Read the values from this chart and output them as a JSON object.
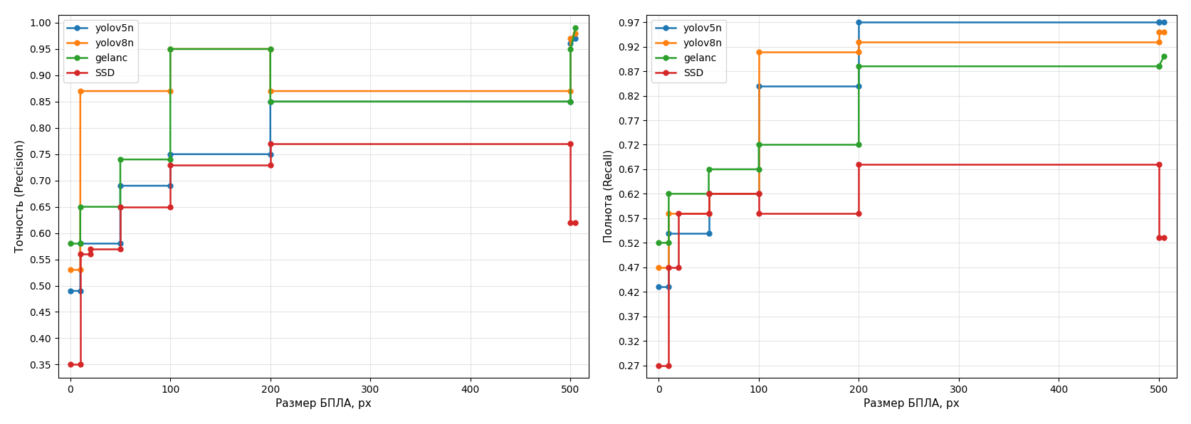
{
  "left": {
    "ylabel": "Точность (Precision)",
    "xlabel": "Размер БПЛА, рх",
    "ylim": [
      0.325,
      1.015
    ],
    "yticks": [
      0.35,
      0.4,
      0.45,
      0.5,
      0.55,
      0.6,
      0.65,
      0.7,
      0.75,
      0.8,
      0.85,
      0.9,
      0.95,
      1.0
    ],
    "xlim": [
      -12,
      518
    ],
    "xticks": [
      0,
      100,
      200,
      300,
      400,
      500
    ],
    "series": {
      "yolov5n": {
        "color": "#1f77b4",
        "x": [
          0,
          10,
          10,
          50,
          50,
          100,
          100,
          200,
          200,
          500,
          500,
          505
        ],
        "y": [
          0.49,
          0.49,
          0.58,
          0.58,
          0.69,
          0.69,
          0.75,
          0.75,
          0.85,
          0.85,
          0.96,
          0.97
        ]
      },
      "yolov8n": {
        "color": "#ff7f0e",
        "x": [
          0,
          10,
          10,
          100,
          100,
          200,
          200,
          500,
          500,
          505
        ],
        "y": [
          0.53,
          0.53,
          0.87,
          0.87,
          0.95,
          0.95,
          0.87,
          0.87,
          0.97,
          0.98
        ]
      },
      "gelanc": {
        "color": "#2ca02c",
        "x": [
          0,
          10,
          10,
          50,
          50,
          100,
          100,
          200,
          200,
          500,
          500,
          505
        ],
        "y": [
          0.58,
          0.58,
          0.65,
          0.65,
          0.74,
          0.74,
          0.95,
          0.95,
          0.85,
          0.85,
          0.95,
          0.99
        ]
      },
      "SSD": {
        "color": "#d62728",
        "x": [
          0,
          10,
          10,
          20,
          20,
          50,
          50,
          100,
          100,
          200,
          200,
          500,
          500,
          505
        ],
        "y": [
          0.35,
          0.35,
          0.56,
          0.56,
          0.57,
          0.57,
          0.65,
          0.65,
          0.73,
          0.73,
          0.77,
          0.77,
          0.62,
          0.62
        ]
      }
    }
  },
  "right": {
    "ylabel": "Полнота (Recall)",
    "xlabel": "Размер БПЛА, рх",
    "ylim": [
      0.245,
      0.985
    ],
    "yticks": [
      0.27,
      0.32,
      0.37,
      0.42,
      0.47,
      0.52,
      0.57,
      0.62,
      0.67,
      0.72,
      0.77,
      0.82,
      0.87,
      0.92,
      0.97
    ],
    "xlim": [
      -12,
      518
    ],
    "xticks": [
      0,
      100,
      200,
      300,
      400,
      500
    ],
    "series": {
      "yolov5n": {
        "color": "#1f77b4",
        "x": [
          0,
          10,
          10,
          50,
          50,
          100,
          100,
          200,
          200,
          500,
          500,
          505
        ],
        "y": [
          0.43,
          0.43,
          0.54,
          0.54,
          0.62,
          0.62,
          0.84,
          0.84,
          0.97,
          0.97,
          0.97,
          0.97
        ]
      },
      "yolov8n": {
        "color": "#ff7f0e",
        "x": [
          0,
          10,
          10,
          50,
          50,
          100,
          100,
          200,
          200,
          500,
          500,
          505
        ],
        "y": [
          0.47,
          0.47,
          0.58,
          0.58,
          0.62,
          0.62,
          0.91,
          0.91,
          0.93,
          0.93,
          0.95,
          0.95
        ]
      },
      "gelanc": {
        "color": "#2ca02c",
        "x": [
          0,
          10,
          10,
          50,
          50,
          100,
          100,
          200,
          200,
          500,
          500,
          505
        ],
        "y": [
          0.52,
          0.52,
          0.62,
          0.62,
          0.67,
          0.67,
          0.72,
          0.72,
          0.88,
          0.88,
          0.88,
          0.9
        ]
      },
      "SSD": {
        "color": "#d62728",
        "x": [
          0,
          10,
          10,
          20,
          20,
          50,
          50,
          100,
          100,
          200,
          200,
          500,
          500,
          505
        ],
        "y": [
          0.27,
          0.27,
          0.47,
          0.47,
          0.58,
          0.58,
          0.62,
          0.62,
          0.58,
          0.58,
          0.68,
          0.68,
          0.53,
          0.53
        ]
      }
    }
  },
  "legend_order": [
    "yolov5n",
    "yolov8n",
    "gelanc",
    "SSD"
  ]
}
